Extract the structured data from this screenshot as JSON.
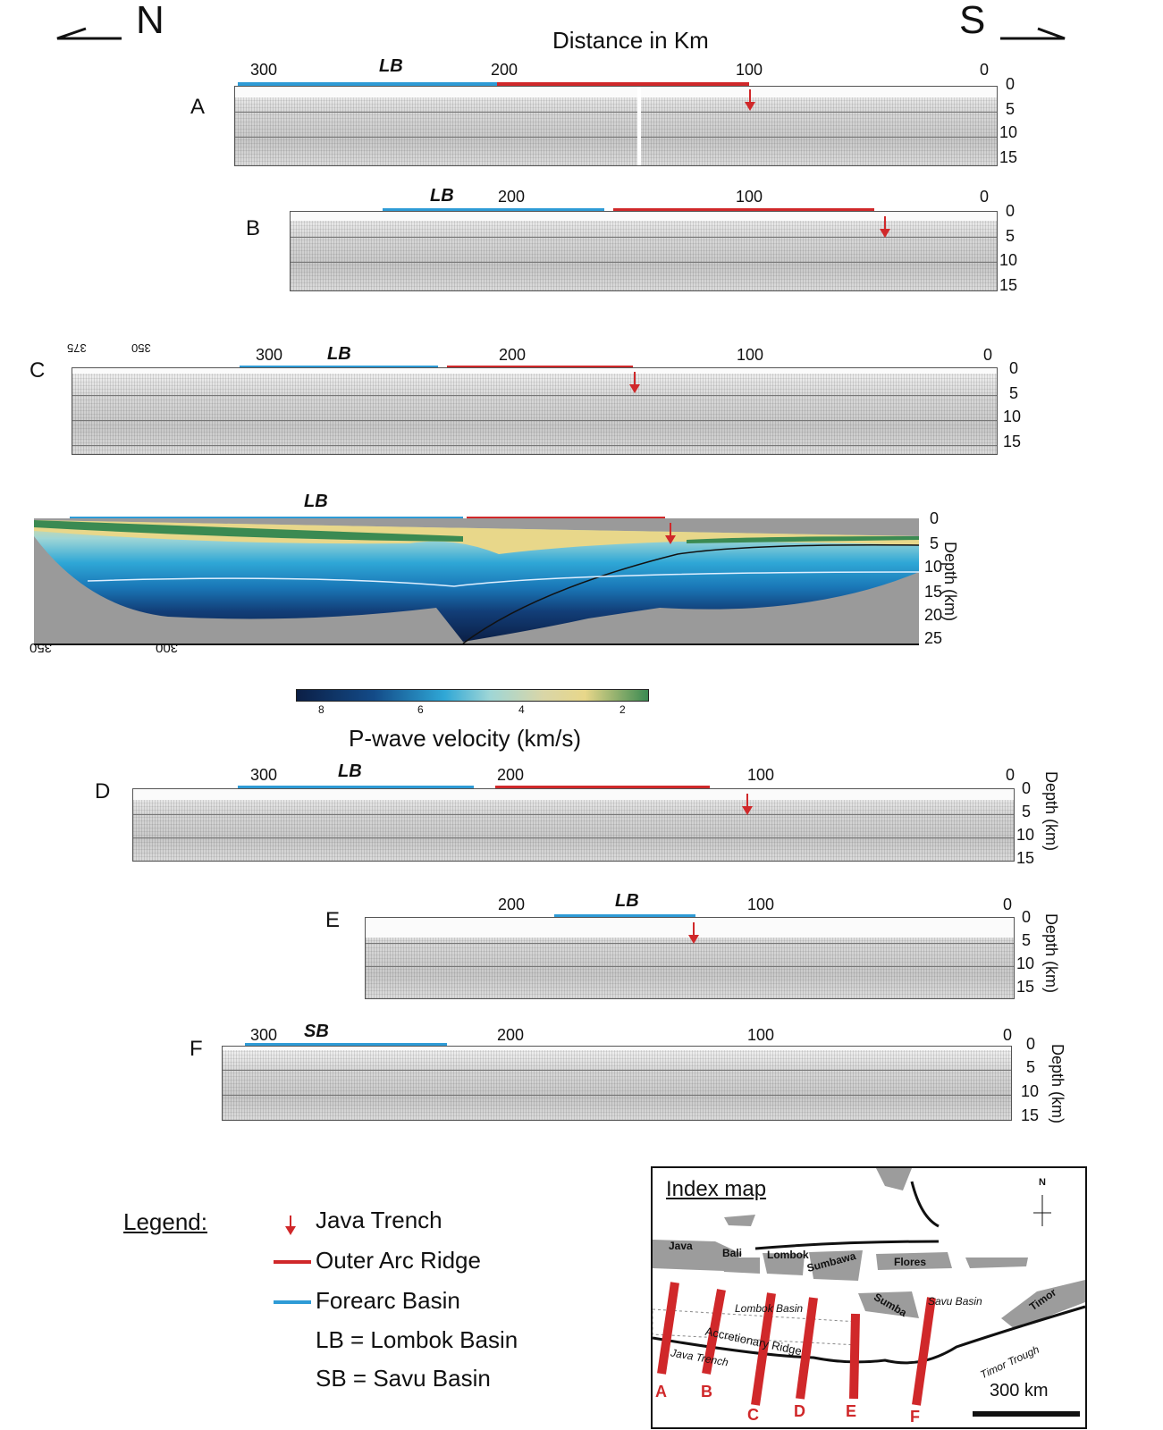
{
  "header": {
    "north": "N",
    "south": "S",
    "axis_title": "Distance in Km"
  },
  "panels": {
    "A": {
      "letter": "A",
      "ticks": [
        "300",
        "200",
        "100",
        "0"
      ],
      "depths": [
        "0",
        "5",
        "10",
        "15"
      ],
      "basin": "LB"
    },
    "B": {
      "letter": "B",
      "ticks": [
        "200",
        "100",
        "0"
      ],
      "depths": [
        "0",
        "5",
        "10",
        "15"
      ],
      "basin": "LB"
    },
    "C": {
      "letter": "C",
      "ticks": [
        "300",
        "200",
        "100",
        "0"
      ],
      "mirrored_ticks": [
        "375",
        "350"
      ],
      "depths": [
        "0",
        "5",
        "10",
        "15"
      ],
      "basin": "LB"
    },
    "V": {
      "ticks_bottom": [
        "350",
        "300"
      ],
      "depths": [
        "0",
        "5",
        "10",
        "15",
        "20",
        "25"
      ],
      "depth_label": "Depth (km)",
      "basin": "LB"
    },
    "D": {
      "letter": "D",
      "ticks": [
        "300",
        "200",
        "100",
        "0"
      ],
      "depths": [
        "0",
        "5",
        "10",
        "15"
      ],
      "depth_label": "Depth (km)",
      "basin": "LB"
    },
    "E": {
      "letter": "E",
      "ticks": [
        "200",
        "100",
        "0"
      ],
      "depths": [
        "0",
        "5",
        "10",
        "15"
      ],
      "depth_label": "Depth (km)",
      "basin": "LB"
    },
    "F": {
      "letter": "F",
      "ticks": [
        "300",
        "200",
        "100",
        "0"
      ],
      "depths": [
        "0",
        "5",
        "10",
        "15"
      ],
      "depth_label": "Depth (km)",
      "basin": "SB"
    }
  },
  "colorbar": {
    "ticks": [
      "8",
      "6",
      "4",
      "2"
    ],
    "title": "P-wave velocity (km/s)"
  },
  "legend": {
    "title": "Legend:",
    "java_trench": "Java Trench",
    "outer_arc_ridge": "Outer Arc Ridge",
    "forearc_basin": "Forearc Basin",
    "lb_def": "LB = Lombok Basin",
    "sb_def": "SB = Savu Basin"
  },
  "colors": {
    "trench_red": "#d0282a",
    "ridge_red": "#d0282a",
    "basin_blue": "#2e9bd6"
  },
  "index_map": {
    "title": "Index map",
    "north": "N",
    "places": {
      "java": "Java",
      "bali": "Bali",
      "lombok": "Lombok",
      "sumbawa": "Sumbawa",
      "flores": "Flores",
      "sumba": "Sumba",
      "timor": "Timor",
      "lombok_basin": "Lombok Basin",
      "savu_basin": "Savu Basin",
      "accretionary_ridge": "Accretionary Ridge",
      "java_trench": "Java Trench",
      "timor_trough": "Timor Trough"
    },
    "profile_letters": [
      "A",
      "B",
      "C",
      "D",
      "E",
      "F"
    ],
    "scale": "300 km"
  }
}
